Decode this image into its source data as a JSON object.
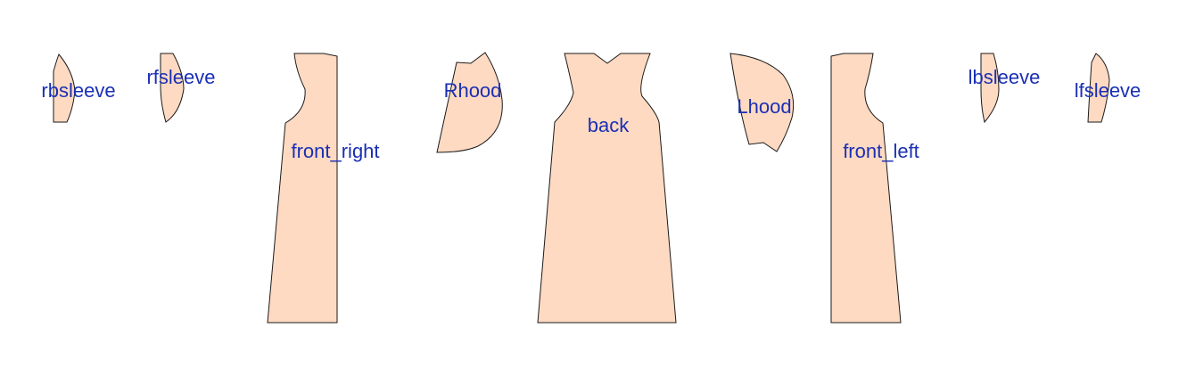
{
  "colors": {
    "background": "#ffffff",
    "piece_fill": "#ffdac2",
    "piece_stroke": "#1a1a1a",
    "label": "#1a2fb4"
  },
  "pieces": [
    {
      "id": "rbsleeve",
      "label": "rbsleeve"
    },
    {
      "id": "rfsleeve",
      "label": "rfsleeve"
    },
    {
      "id": "front-right",
      "label": "front_right"
    },
    {
      "id": "rhood",
      "label": "Rhood"
    },
    {
      "id": "back",
      "label": "back"
    },
    {
      "id": "lhood",
      "label": "Lhood"
    },
    {
      "id": "front-left",
      "label": "front_left"
    },
    {
      "id": "lbsleeve",
      "label": "lbsleeve"
    },
    {
      "id": "lfsleeve",
      "label": "lfsleeve"
    }
  ]
}
